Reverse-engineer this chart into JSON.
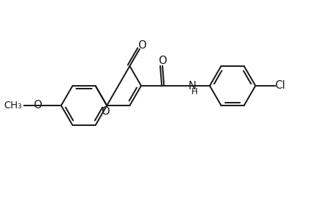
{
  "background_color": "#ffffff",
  "line_color": "#1a1a1a",
  "line_width": 1.5,
  "font_size": 11,
  "figsize": [
    4.6,
    3.0
  ],
  "dpi": 100,
  "xlim": [
    0,
    10
  ],
  "ylim": [
    0.5,
    7
  ]
}
